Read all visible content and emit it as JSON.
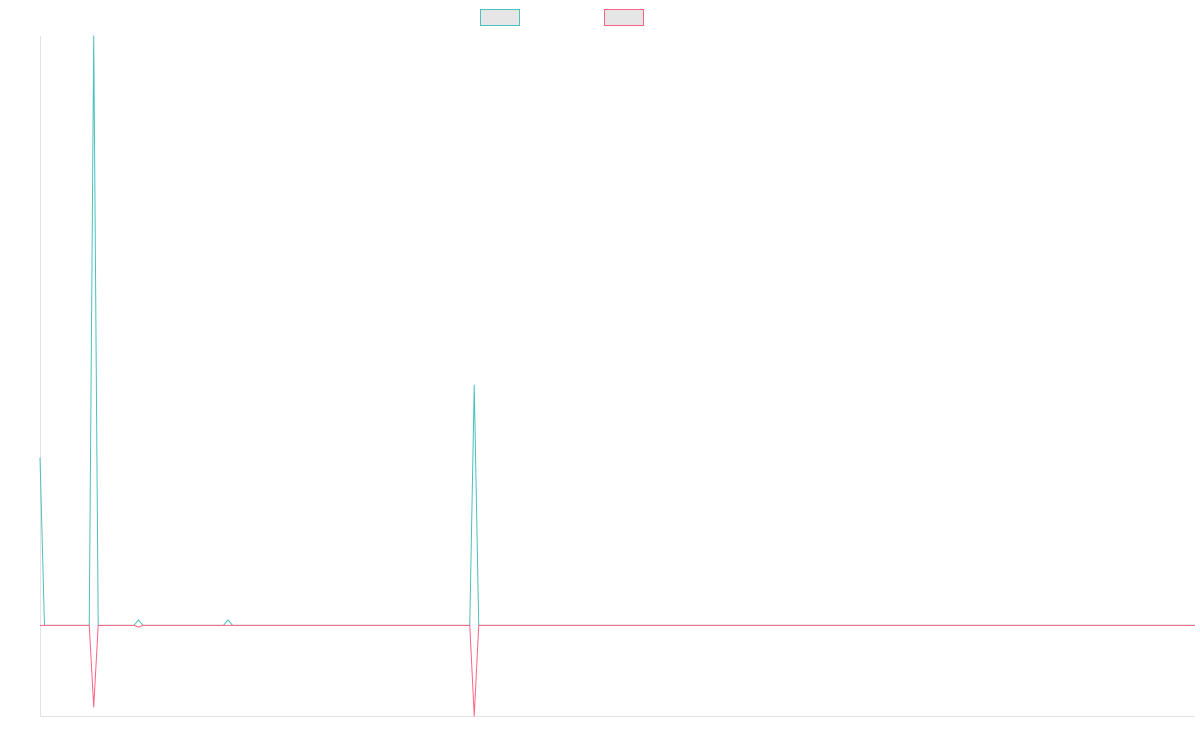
{
  "chart_data": {
    "type": "line",
    "title": "",
    "xlabel": "",
    "ylabel": "",
    "grid": false,
    "legend_placement": "top-center",
    "x": [
      0,
      1,
      2,
      3,
      4,
      5,
      6,
      7,
      8,
      9,
      10,
      11,
      12,
      13,
      14,
      15,
      16,
      17,
      18,
      19,
      20,
      21,
      22,
      23,
      24,
      25,
      26,
      27,
      28,
      29,
      30,
      31,
      32,
      33,
      34,
      35,
      36,
      37,
      38,
      39,
      40,
      41,
      42,
      43,
      44,
      45,
      46,
      47,
      48,
      49,
      50,
      51,
      52,
      53,
      54,
      55,
      56,
      57,
      58,
      59,
      60,
      61,
      62,
      63,
      64,
      65,
      66,
      67,
      68,
      69,
      70,
      71,
      72,
      73,
      74,
      75,
      76,
      77,
      78,
      79,
      80,
      81,
      82,
      83,
      84,
      85,
      86,
      87,
      88,
      89,
      90,
      91,
      92,
      93,
      94,
      95,
      96,
      97,
      98,
      99,
      100,
      101,
      102,
      103,
      104,
      105,
      106,
      107,
      108,
      109,
      110,
      111,
      112,
      113,
      114,
      115,
      116,
      117,
      118,
      119,
      120,
      121,
      122,
      123,
      124,
      125,
      126,
      127,
      128,
      129,
      130,
      131,
      132,
      133,
      134,
      135,
      136,
      137,
      138,
      139,
      140,
      141,
      142,
      143,
      144,
      145,
      146,
      147,
      148,
      149,
      150,
      151,
      152,
      153,
      154,
      155,
      156,
      157,
      158,
      159,
      160,
      161,
      162,
      163,
      164,
      165,
      166,
      167,
      168,
      169,
      170,
      171,
      172,
      173,
      174,
      175,
      176,
      177,
      178,
      179,
      180,
      181,
      182,
      183,
      184,
      185,
      186,
      187,
      188,
      189,
      190,
      191,
      192,
      193,
      194,
      195,
      196,
      197,
      198,
      199,
      200,
      201,
      202,
      203,
      204,
      205,
      206,
      207,
      208,
      209,
      210,
      211,
      212,
      213,
      214,
      215,
      216,
      217,
      218,
      219,
      220,
      221,
      222,
      223,
      224,
      225,
      226,
      227,
      228,
      229,
      230,
      231,
      232,
      233,
      234,
      235,
      236,
      237,
      238,
      239,
      240,
      241,
      242,
      243,
      244,
      245,
      246,
      247,
      248,
      249,
      250,
      251,
      252,
      253,
      254,
      255,
      256,
      257,
      258
    ],
    "ylim": [
      -100,
      650
    ],
    "series": [
      {
        "name": "",
        "color": "#4bc0c0",
        "spikes": {
          "0": 185,
          "12": 650,
          "22": 6,
          "42": 6,
          "97": 265
        }
      },
      {
        "name": "",
        "color": "#ff6384",
        "spikes": {
          "12": -90,
          "22": -2,
          "97": -100
        }
      }
    ]
  }
}
